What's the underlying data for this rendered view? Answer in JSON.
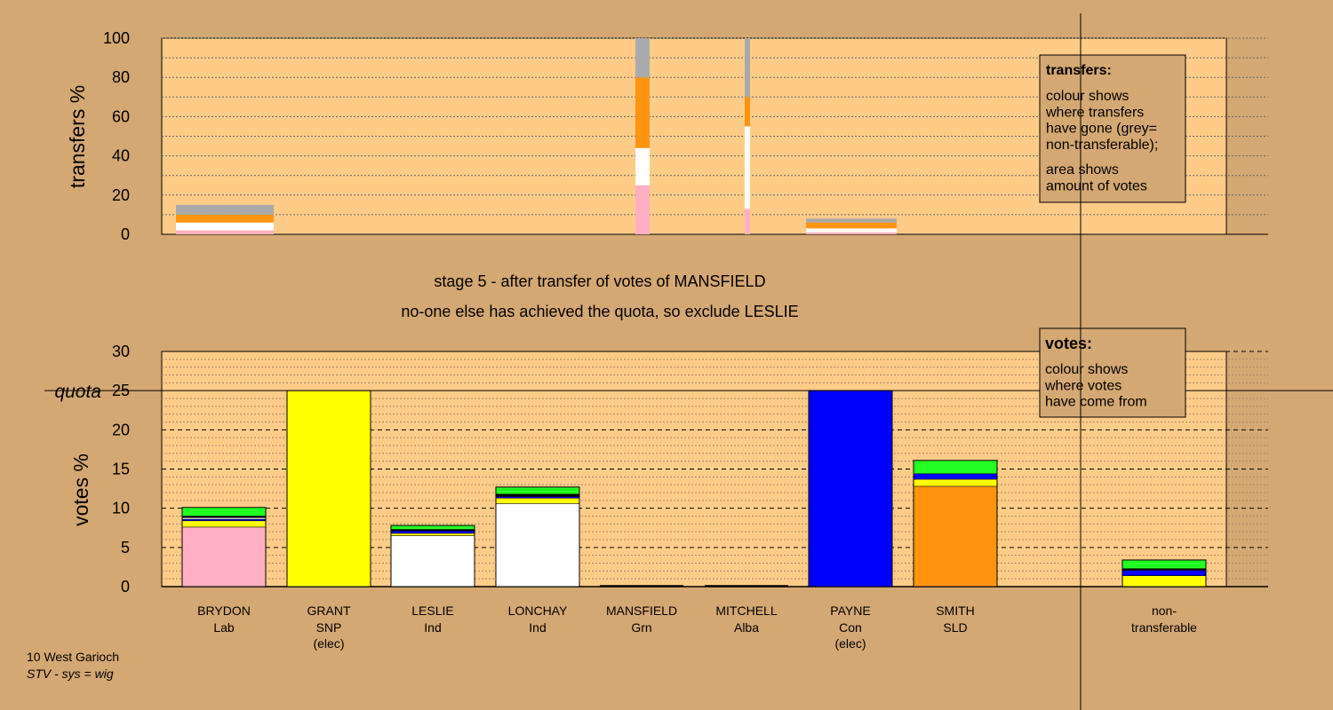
{
  "colors": {
    "background": "#d4a872",
    "plot_bg": "#ffcc88",
    "Lab": "#ffb0c0",
    "SNP": "#ffff00",
    "Ind": "#ffffff",
    "Grn": "#22ff22",
    "Alba": "#000000",
    "Con": "#0000ff",
    "SLD": "#ff9410",
    "nontransferable": "#aaaaaa"
  },
  "chart_data": [
    {
      "type": "bar",
      "stacked": true,
      "ylabel": "transfers %",
      "ylim": [
        0,
        100
      ],
      "yticks": [
        "0",
        "20",
        "40",
        "60",
        "80",
        "100"
      ],
      "candidates": [
        "BRYDON",
        "GRANT",
        "LESLIE",
        "LONCHAY",
        "MANSFIELD",
        "MITCHELL",
        "PAYNE",
        "SMITH"
      ],
      "bars": [
        {
          "candidate": "BRYDON",
          "segments": [
            {
              "party": "Lab",
              "value": 2
            },
            {
              "party": "Ind",
              "value": 4
            },
            {
              "party": "SLD",
              "value": 4
            },
            {
              "party": "nontransferable",
              "value": 5
            }
          ]
        },
        {
          "candidate": "MANSFIELD",
          "segments": [
            {
              "party": "Lab",
              "value": 25
            },
            {
              "party": "Ind",
              "value": 19
            },
            {
              "party": "SLD",
              "value": 36
            },
            {
              "party": "nontransferable",
              "value": 20
            }
          ]
        },
        {
          "candidate": "MITCHELL",
          "segments": [
            {
              "party": "Lab",
              "value": 13
            },
            {
              "party": "Ind",
              "value": 42
            },
            {
              "party": "SLD",
              "value": 15
            },
            {
              "party": "nontransferable",
              "value": 30
            }
          ]
        },
        {
          "candidate": "PAYNE",
          "segments": [
            {
              "party": "Lab",
              "value": 1
            },
            {
              "party": "Ind",
              "value": 2
            },
            {
              "party": "SLD",
              "value": 3
            },
            {
              "party": "nontransferable",
              "value": 2
            }
          ]
        }
      ],
      "legend": {
        "title": "transfers:",
        "lines1": [
          "colour shows",
          "where transfers",
          "have gone (grey=",
          "non-transferable);"
        ],
        "lines2": [
          "area shows",
          "amount of votes"
        ],
        "placement": "top-right"
      }
    },
    {
      "type": "bar",
      "stacked": true,
      "ylabel": "votes %",
      "ylim": [
        0,
        30
      ],
      "yticks": [
        "0",
        "5",
        "10",
        "15",
        "20",
        "25",
        "30"
      ],
      "quota": {
        "label": "quota",
        "value": 25
      },
      "categories": [
        {
          "name": "BRYDON",
          "party": "Lab",
          "note": ""
        },
        {
          "name": "GRANT",
          "party": "SNP",
          "note": "(elec)"
        },
        {
          "name": "LESLIE",
          "party": "Ind",
          "note": ""
        },
        {
          "name": "LONCHAY",
          "party": "Ind",
          "note": ""
        },
        {
          "name": "MANSFIELD",
          "party": "Grn",
          "note": ""
        },
        {
          "name": "MITCHELL",
          "party": "Alba",
          "note": ""
        },
        {
          "name": "PAYNE",
          "party": "Con",
          "note": "(elec)"
        },
        {
          "name": "SMITH",
          "party": "SLD",
          "note": ""
        },
        {
          "name": "non-",
          "party": "transferable",
          "note": ""
        }
      ],
      "bars": [
        {
          "candidate": "BRYDON",
          "segments": [
            {
              "party": "Lab",
              "value": 7.6
            },
            {
              "party": "SNP",
              "value": 0.8
            },
            {
              "party": "Con",
              "value": 0.2
            },
            {
              "party": "Ind",
              "value": 0.2
            },
            {
              "party": "Alba",
              "value": 0.2
            },
            {
              "party": "Grn",
              "value": 1.1
            }
          ]
        },
        {
          "candidate": "GRANT",
          "segments": [
            {
              "party": "SNP",
              "value": 25
            }
          ]
        },
        {
          "candidate": "LESLIE",
          "segments": [
            {
              "party": "Ind",
              "value": 6.5
            },
            {
              "party": "SNP",
              "value": 0.3
            },
            {
              "party": "Con",
              "value": 0.3
            },
            {
              "party": "Alba",
              "value": 0.2
            },
            {
              "party": "Grn",
              "value": 0.5
            }
          ]
        },
        {
          "candidate": "LONCHAY",
          "segments": [
            {
              "party": "Ind",
              "value": 10.6
            },
            {
              "party": "SNP",
              "value": 0.7
            },
            {
              "party": "Con",
              "value": 0.2
            },
            {
              "party": "Alba",
              "value": 0.3
            },
            {
              "party": "Grn",
              "value": 0.9
            }
          ]
        },
        {
          "candidate": "MANSFIELD",
          "segments": []
        },
        {
          "candidate": "MITCHELL",
          "segments": []
        },
        {
          "candidate": "PAYNE",
          "segments": [
            {
              "party": "Con",
              "value": 25
            }
          ]
        },
        {
          "candidate": "SMITH",
          "segments": [
            {
              "party": "SLD",
              "value": 12.8
            },
            {
              "party": "SNP",
              "value": 0.9
            },
            {
              "party": "Con",
              "value": 0.7
            },
            {
              "party": "Grn",
              "value": 1.7
            }
          ]
        },
        {
          "candidate": "non-transferable",
          "segments": [
            {
              "party": "SNP",
              "value": 1.4
            },
            {
              "party": "Con",
              "value": 0.7
            },
            {
              "party": "Alba",
              "value": 0.2
            },
            {
              "party": "Grn",
              "value": 1.1
            }
          ]
        }
      ],
      "legend": {
        "title": "votes:",
        "lines": [
          "colour shows",
          "where votes",
          "have come from"
        ],
        "placement": "top-right"
      }
    }
  ],
  "stage_title": "stage 5 - after transfer of votes of MANSFIELD",
  "stage_subtitle": "no-one else has achieved the quota, so exclude LESLIE",
  "footer": {
    "line1": "10 West Garioch",
    "line2": "STV - sys = wig"
  }
}
